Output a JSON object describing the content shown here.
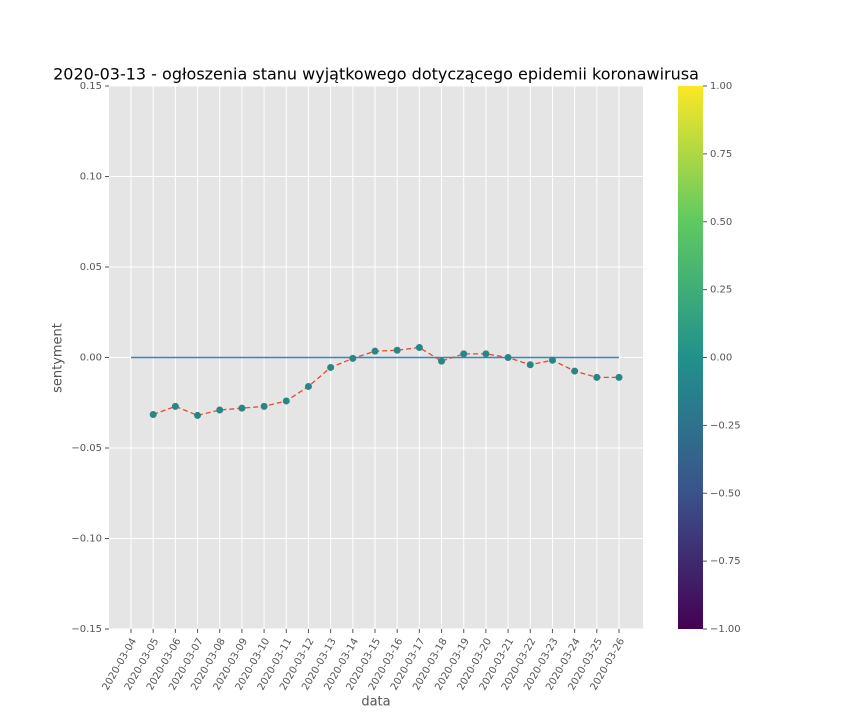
{
  "chart_data": {
    "type": "line",
    "title": "2020-03-13 - ogłoszenia stanu wyjątkowego dotyczącego epidemii koronawirusa",
    "xlabel": "data",
    "ylabel": "sentyment",
    "categories": [
      "2020-03-04",
      "2020-03-05",
      "2020-03-06",
      "2020-03-07",
      "2020-03-08",
      "2020-03-09",
      "2020-03-10",
      "2020-03-11",
      "2020-03-12",
      "2020-03-13",
      "2020-03-14",
      "2020-03-15",
      "2020-03-16",
      "2020-03-17",
      "2020-03-18",
      "2020-03-19",
      "2020-03-20",
      "2020-03-21",
      "2020-03-22",
      "2020-03-23",
      "2020-03-24",
      "2020-03-25",
      "2020-03-26"
    ],
    "values": [
      null,
      -0.0315,
      -0.027,
      -0.032,
      -0.029,
      -0.028,
      -0.027,
      -0.024,
      -0.016,
      -0.0055,
      -0.0005,
      0.0035,
      0.004,
      0.0055,
      -0.002,
      0.002,
      0.002,
      0.0,
      -0.004,
      -0.0015,
      -0.0075,
      -0.011,
      -0.011
    ],
    "line_color": "#e24a33",
    "marker_color": "#2a8584",
    "reference_line": {
      "value": 0,
      "color": "#348abd"
    },
    "ylim": [
      -0.15,
      0.15
    ],
    "yticks": [
      {
        "value": -0.15,
        "label": "−0.15"
      },
      {
        "value": -0.1,
        "label": "−0.10"
      },
      {
        "value": -0.05,
        "label": "−0.05"
      },
      {
        "value": 0,
        "label": "0.00"
      },
      0.05,
      {
        "value": 0.1,
        "label": "0.10"
      },
      0.15
    ],
    "grid": true,
    "colorbar": {
      "clim": [
        -1,
        1
      ],
      "colormap": [
        "#440154",
        "#3b528b",
        "#21918c",
        "#5ec962",
        "#fde725"
      ],
      "ticks": [
        {
          "value": -1,
          "label": "−1.00"
        },
        {
          "value": -0.75,
          "label": "−0.75"
        },
        {
          "value": -0.5,
          "label": "−0.50"
        },
        {
          "value": -0.25,
          "label": "−0.25"
        },
        {
          "value": 0,
          "label": "0.00"
        },
        {
          "value": 0.25,
          "label": "0.25"
        },
        {
          "value": 0.5,
          "label": "0.50"
        },
        {
          "value": 0.75,
          "label": "0.75"
        },
        {
          "value": 1,
          "label": "1.00"
        }
      ]
    }
  }
}
